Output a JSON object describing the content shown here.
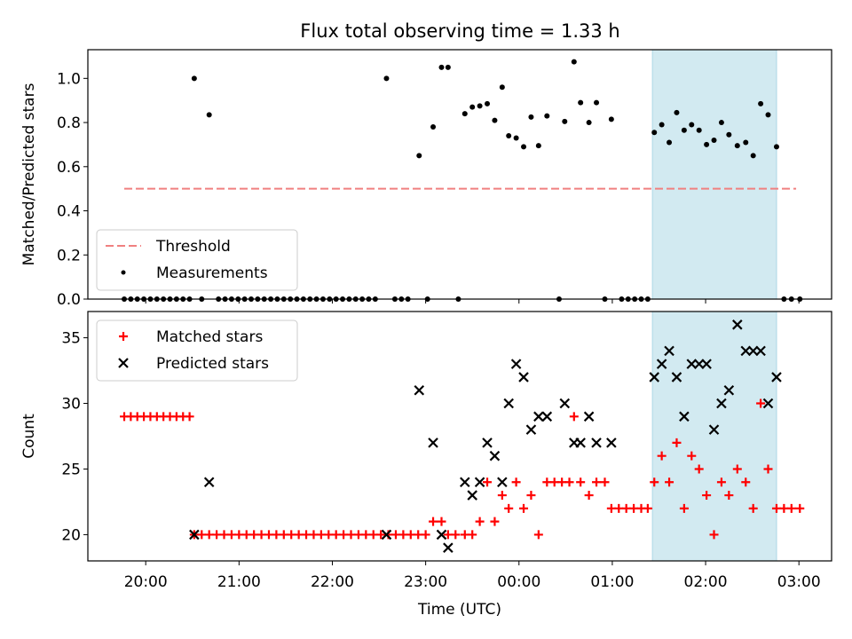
{
  "title": "Flux total observing time = 1.33 h",
  "colors": {
    "threshold": "#f08080",
    "measurements": "#000000",
    "matched": "#ff0000",
    "predicted": "#000000",
    "highlight": "#add8e6"
  },
  "chart_data": [
    {
      "type": "scatter",
      "panel": "top",
      "ylabel": "Matched/Predicted stars",
      "ylim": [
        0,
        1.13
      ],
      "xlim": [
        -0.62,
        7.35
      ],
      "x_unit": "hours after 20:00 UTC",
      "yticks": [
        "0.0",
        "0.2",
        "0.4",
        "0.6",
        "0.8",
        "1.0"
      ],
      "highlight_span": [
        5.43,
        6.76
      ],
      "legend_position": "lower-left",
      "series": [
        {
          "name": "Threshold",
          "kind": "dashed-line",
          "points": [
            [
              -0.23,
              0.5
            ],
            [
              6.97,
              0.5
            ]
          ]
        },
        {
          "name": "Measurements",
          "kind": "dot",
          "points": [
            [
              -0.23,
              0
            ],
            [
              -0.16,
              0
            ],
            [
              -0.09,
              0
            ],
            [
              -0.02,
              0
            ],
            [
              0.05,
              0
            ],
            [
              0.12,
              0
            ],
            [
              0.19,
              0
            ],
            [
              0.26,
              0
            ],
            [
              0.33,
              0
            ],
            [
              0.4,
              0
            ],
            [
              0.47,
              0
            ],
            [
              0.52,
              1.0
            ],
            [
              0.6,
              0
            ],
            [
              0.68,
              0.835
            ],
            [
              0.78,
              0
            ],
            [
              0.85,
              0
            ],
            [
              0.92,
              0
            ],
            [
              0.99,
              0
            ],
            [
              1.06,
              0
            ],
            [
              1.13,
              0
            ],
            [
              1.2,
              0
            ],
            [
              1.27,
              0
            ],
            [
              1.34,
              0
            ],
            [
              1.41,
              0
            ],
            [
              1.48,
              0
            ],
            [
              1.55,
              0
            ],
            [
              1.62,
              0
            ],
            [
              1.69,
              0
            ],
            [
              1.76,
              0
            ],
            [
              1.83,
              0
            ],
            [
              1.9,
              0
            ],
            [
              1.97,
              0
            ],
            [
              2.04,
              0
            ],
            [
              2.11,
              0
            ],
            [
              2.18,
              0
            ],
            [
              2.25,
              0
            ],
            [
              2.32,
              0
            ],
            [
              2.39,
              0
            ],
            [
              2.46,
              0
            ],
            [
              2.58,
              1.0
            ],
            [
              2.67,
              0
            ],
            [
              2.74,
              0
            ],
            [
              2.81,
              0
            ],
            [
              2.93,
              0.65
            ],
            [
              3.02,
              0
            ],
            [
              3.08,
              0.78
            ],
            [
              3.17,
              1.05
            ],
            [
              3.24,
              1.05
            ],
            [
              3.35,
              0
            ],
            [
              3.42,
              0.84
            ],
            [
              3.5,
              0.87
            ],
            [
              3.58,
              0.875
            ],
            [
              3.66,
              0.885
            ],
            [
              3.74,
              0.81
            ],
            [
              3.82,
              0.96
            ],
            [
              3.89,
              0.74
            ],
            [
              3.97,
              0.73
            ],
            [
              4.05,
              0.69
            ],
            [
              4.13,
              0.825
            ],
            [
              4.21,
              0.695
            ],
            [
              4.3,
              0.83
            ],
            [
              4.43,
              0
            ],
            [
              4.49,
              0.805
            ],
            [
              4.59,
              1.075
            ],
            [
              4.66,
              0.89
            ],
            [
              4.75,
              0.8
            ],
            [
              4.83,
              0.89
            ],
            [
              4.92,
              0
            ],
            [
              4.99,
              0.815
            ],
            [
              5.1,
              0
            ],
            [
              5.17,
              0
            ],
            [
              5.24,
              0
            ],
            [
              5.31,
              0
            ],
            [
              5.38,
              0
            ],
            [
              5.45,
              0.755
            ],
            [
              5.53,
              0.79
            ],
            [
              5.61,
              0.71
            ],
            [
              5.69,
              0.845
            ],
            [
              5.77,
              0.765
            ],
            [
              5.85,
              0.79
            ],
            [
              5.93,
              0.765
            ],
            [
              6.01,
              0.7
            ],
            [
              6.09,
              0.72
            ],
            [
              6.17,
              0.8
            ],
            [
              6.25,
              0.745
            ],
            [
              6.34,
              0.695
            ],
            [
              6.43,
              0.71
            ],
            [
              6.51,
              0.65
            ],
            [
              6.59,
              0.885
            ],
            [
              6.67,
              0.835
            ],
            [
              6.76,
              0.69
            ],
            [
              6.84,
              0
            ],
            [
              6.92,
              0
            ],
            [
              7.01,
              0
            ]
          ]
        }
      ]
    },
    {
      "type": "scatter",
      "panel": "bottom",
      "xlabel": "Time (UTC)",
      "ylabel": "Count",
      "ylim": [
        18,
        37
      ],
      "xlim": [
        -0.62,
        7.35
      ],
      "x_unit": "hours after 20:00 UTC",
      "yticks": [
        "20",
        "25",
        "30",
        "35"
      ],
      "xticks": [
        "20:00",
        "21:00",
        "22:00",
        "23:00",
        "00:00",
        "01:00",
        "02:00",
        "03:00"
      ],
      "highlight_span": [
        5.43,
        6.76
      ],
      "legend_position": "upper-left",
      "series": [
        {
          "name": "Matched stars",
          "kind": "plus",
          "points": [
            [
              -0.23,
              29
            ],
            [
              -0.16,
              29
            ],
            [
              -0.09,
              29
            ],
            [
              -0.02,
              29
            ],
            [
              0.05,
              29
            ],
            [
              0.12,
              29
            ],
            [
              0.19,
              29
            ],
            [
              0.26,
              29
            ],
            [
              0.33,
              29
            ],
            [
              0.4,
              29
            ],
            [
              0.47,
              29
            ],
            [
              0.52,
              20
            ],
            [
              0.6,
              20
            ],
            [
              0.68,
              20
            ],
            [
              0.76,
              20
            ],
            [
              0.84,
              20
            ],
            [
              0.92,
              20
            ],
            [
              1.0,
              20
            ],
            [
              1.08,
              20
            ],
            [
              1.16,
              20
            ],
            [
              1.24,
              20
            ],
            [
              1.32,
              20
            ],
            [
              1.4,
              20
            ],
            [
              1.48,
              20
            ],
            [
              1.56,
              20
            ],
            [
              1.64,
              20
            ],
            [
              1.72,
              20
            ],
            [
              1.8,
              20
            ],
            [
              1.88,
              20
            ],
            [
              1.96,
              20
            ],
            [
              2.04,
              20
            ],
            [
              2.12,
              20
            ],
            [
              2.2,
              20
            ],
            [
              2.28,
              20
            ],
            [
              2.36,
              20
            ],
            [
              2.44,
              20
            ],
            [
              2.52,
              20
            ],
            [
              2.6,
              20
            ],
            [
              2.68,
              20
            ],
            [
              2.76,
              20
            ],
            [
              2.84,
              20
            ],
            [
              2.92,
              20
            ],
            [
              3.0,
              20
            ],
            [
              3.08,
              21
            ],
            [
              3.17,
              21
            ],
            [
              3.24,
              20
            ],
            [
              3.32,
              20
            ],
            [
              3.42,
              20
            ],
            [
              3.5,
              20
            ],
            [
              3.58,
              21
            ],
            [
              3.66,
              24
            ],
            [
              3.74,
              21
            ],
            [
              3.82,
              23
            ],
            [
              3.89,
              22
            ],
            [
              3.97,
              24
            ],
            [
              4.05,
              22
            ],
            [
              4.13,
              23
            ],
            [
              4.21,
              20
            ],
            [
              4.3,
              24
            ],
            [
              4.38,
              24
            ],
            [
              4.46,
              24
            ],
            [
              4.54,
              24
            ],
            [
              4.59,
              29
            ],
            [
              4.66,
              24
            ],
            [
              4.75,
              23
            ],
            [
              4.83,
              24
            ],
            [
              4.92,
              24
            ],
            [
              4.99,
              22
            ],
            [
              5.07,
              22
            ],
            [
              5.15,
              22
            ],
            [
              5.23,
              22
            ],
            [
              5.31,
              22
            ],
            [
              5.38,
              22
            ],
            [
              5.45,
              24
            ],
            [
              5.53,
              26
            ],
            [
              5.61,
              24
            ],
            [
              5.69,
              27
            ],
            [
              5.77,
              22
            ],
            [
              5.85,
              26
            ],
            [
              5.93,
              25
            ],
            [
              6.01,
              23
            ],
            [
              6.09,
              20
            ],
            [
              6.17,
              24
            ],
            [
              6.25,
              23
            ],
            [
              6.34,
              25
            ],
            [
              6.43,
              24
            ],
            [
              6.51,
              22
            ],
            [
              6.59,
              30
            ],
            [
              6.67,
              25
            ],
            [
              6.76,
              22
            ],
            [
              6.84,
              22
            ],
            [
              6.92,
              22
            ],
            [
              7.01,
              22
            ]
          ]
        },
        {
          "name": "Predicted stars",
          "kind": "x",
          "points": [
            [
              0.52,
              20
            ],
            [
              0.68,
              24
            ],
            [
              2.58,
              20
            ],
            [
              2.93,
              31
            ],
            [
              3.08,
              27
            ],
            [
              3.17,
              20
            ],
            [
              3.24,
              19
            ],
            [
              3.42,
              24
            ],
            [
              3.5,
              23
            ],
            [
              3.58,
              24
            ],
            [
              3.66,
              27
            ],
            [
              3.74,
              26
            ],
            [
              3.82,
              24
            ],
            [
              3.89,
              30
            ],
            [
              3.97,
              33
            ],
            [
              4.05,
              32
            ],
            [
              4.13,
              28
            ],
            [
              4.21,
              29
            ],
            [
              4.3,
              29
            ],
            [
              4.49,
              30
            ],
            [
              4.59,
              27
            ],
            [
              4.66,
              27
            ],
            [
              4.75,
              29
            ],
            [
              4.83,
              27
            ],
            [
              4.99,
              27
            ],
            [
              5.45,
              32
            ],
            [
              5.53,
              33
            ],
            [
              5.61,
              34
            ],
            [
              5.69,
              32
            ],
            [
              5.77,
              29
            ],
            [
              5.85,
              33
            ],
            [
              5.93,
              33
            ],
            [
              6.01,
              33
            ],
            [
              6.09,
              28
            ],
            [
              6.17,
              30
            ],
            [
              6.25,
              31
            ],
            [
              6.34,
              36
            ],
            [
              6.43,
              34
            ],
            [
              6.51,
              34
            ],
            [
              6.59,
              34
            ],
            [
              6.67,
              30
            ],
            [
              6.76,
              32
            ]
          ]
        }
      ]
    }
  ]
}
